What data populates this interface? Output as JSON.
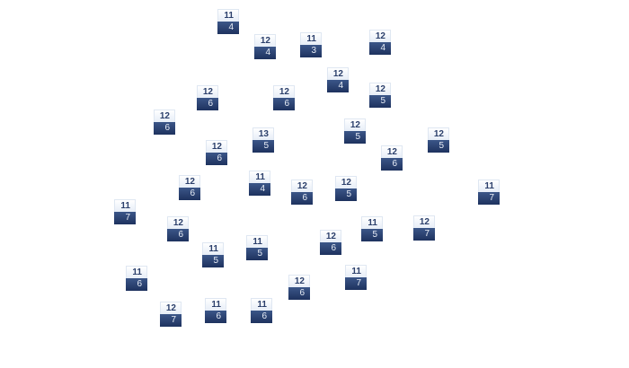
{
  "nodes": [
    {
      "top": "11",
      "bottom": "4"
    },
    {
      "top": "12",
      "bottom": "4"
    },
    {
      "top": "11",
      "bottom": "3"
    },
    {
      "top": "12",
      "bottom": "4"
    },
    {
      "top": "12",
      "bottom": "4"
    },
    {
      "top": "12",
      "bottom": "6"
    },
    {
      "top": "12",
      "bottom": "6"
    },
    {
      "top": "12",
      "bottom": "5"
    },
    {
      "top": "12",
      "bottom": "6"
    },
    {
      "top": "12",
      "bottom": "5"
    },
    {
      "top": "13",
      "bottom": "5"
    },
    {
      "top": "12",
      "bottom": "5"
    },
    {
      "top": "12",
      "bottom": "6"
    },
    {
      "top": "12",
      "bottom": "6"
    },
    {
      "top": "12",
      "bottom": "6"
    },
    {
      "top": "11",
      "bottom": "4"
    },
    {
      "top": "12",
      "bottom": "6"
    },
    {
      "top": "12",
      "bottom": "5"
    },
    {
      "top": "11",
      "bottom": "7"
    },
    {
      "top": "11",
      "bottom": "7"
    },
    {
      "top": "12",
      "bottom": "6"
    },
    {
      "top": "11",
      "bottom": "5"
    },
    {
      "top": "12",
      "bottom": "7"
    },
    {
      "top": "12",
      "bottom": "6"
    },
    {
      "top": "11",
      "bottom": "5"
    },
    {
      "top": "11",
      "bottom": "5"
    },
    {
      "top": "11",
      "bottom": "6"
    },
    {
      "top": "11",
      "bottom": "7"
    },
    {
      "top": "12",
      "bottom": "6"
    },
    {
      "top": "12",
      "bottom": "7"
    },
    {
      "top": "11",
      "bottom": "6"
    },
    {
      "top": "11",
      "bottom": "6"
    }
  ],
  "colors": {
    "node_dark": "#1e325e",
    "node_light": "#e6edf7",
    "label_dark": "#2b3f6b"
  }
}
